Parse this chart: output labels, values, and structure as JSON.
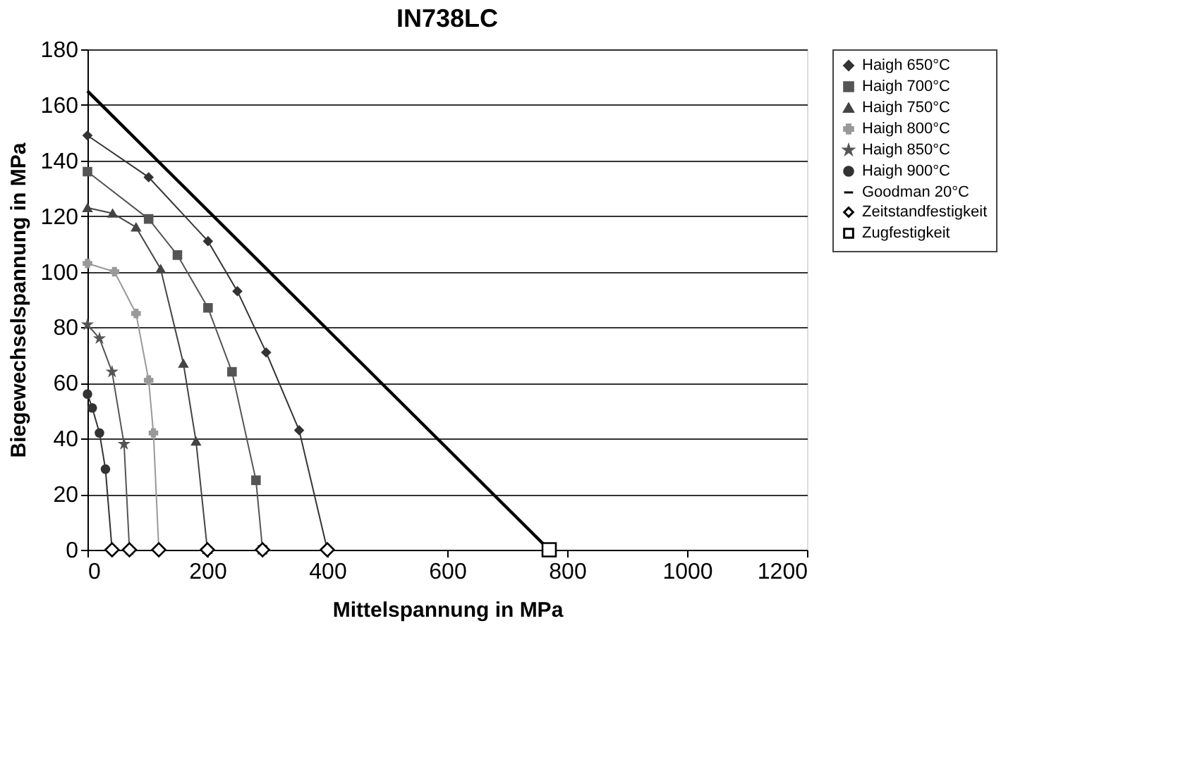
{
  "chart_data": {
    "type": "line",
    "title": "IN738LC",
    "xlabel": "Mittelspannung in MPa",
    "ylabel": "Biegewechselspannung in MPa",
    "xlim": [
      0,
      1200
    ],
    "xticks": [
      0,
      200,
      400,
      600,
      800,
      1000,
      1200
    ],
    "ylim": [
      0,
      180
    ],
    "yticks": [
      0,
      20,
      40,
      60,
      80,
      100,
      120,
      140,
      160,
      180
    ],
    "grid": "y",
    "legend": "right",
    "series": [
      {
        "name": "Haigh 650°C",
        "color": "#333333",
        "marker": "diamond",
        "x": [
          0,
          102,
          201,
          250,
          298,
          353,
          400
        ],
        "values": [
          149,
          134,
          111,
          93,
          71,
          43,
          0
        ]
      },
      {
        "name": "Haigh 700°C",
        "color": "#555555",
        "marker": "square",
        "x": [
          0,
          102,
          150,
          201,
          241,
          281,
          292
        ],
        "values": [
          136,
          119,
          106,
          87,
          64,
          25,
          0
        ]
      },
      {
        "name": "Haigh 750°C",
        "color": "#444444",
        "marker": "triangle",
        "x": [
          0,
          42,
          81,
          122,
          160,
          181,
          200
        ],
        "values": [
          123,
          121,
          116,
          101,
          67,
          39,
          0
        ]
      },
      {
        "name": "Haigh 800°C",
        "color": "#999999",
        "marker": "cross",
        "x": [
          0,
          45,
          81,
          102,
          110,
          119
        ],
        "values": [
          103,
          100,
          85,
          61,
          42,
          0
        ]
      },
      {
        "name": "Haigh 850°C",
        "color": "#555555",
        "marker": "star",
        "x": [
          0,
          20,
          41,
          61,
          70
        ],
        "values": [
          81,
          76,
          64,
          38,
          0
        ]
      },
      {
        "name": "Haigh 900°C",
        "color": "#333333",
        "marker": "circle",
        "x": [
          0,
          8,
          20,
          30,
          41
        ],
        "values": [
          56,
          51,
          42,
          29,
          0
        ]
      },
      {
        "name": "Goodman 20°C",
        "color": "#000000",
        "marker": "none",
        "x": [
          0,
          770
        ],
        "values": [
          165,
          0
        ]
      },
      {
        "name": "Zeitstandfestigkeit",
        "type": "scatter",
        "color": "#000000",
        "marker": "diamond",
        "x": [
          41,
          70,
          119,
          200,
          292,
          400
        ],
        "values": [
          0,
          0,
          0,
          0,
          0,
          0
        ]
      },
      {
        "name": "Zugfestigkeit",
        "type": "scatter",
        "color": "#000000",
        "marker": "square",
        "x": [
          770
        ],
        "values": [
          0
        ]
      }
    ]
  }
}
